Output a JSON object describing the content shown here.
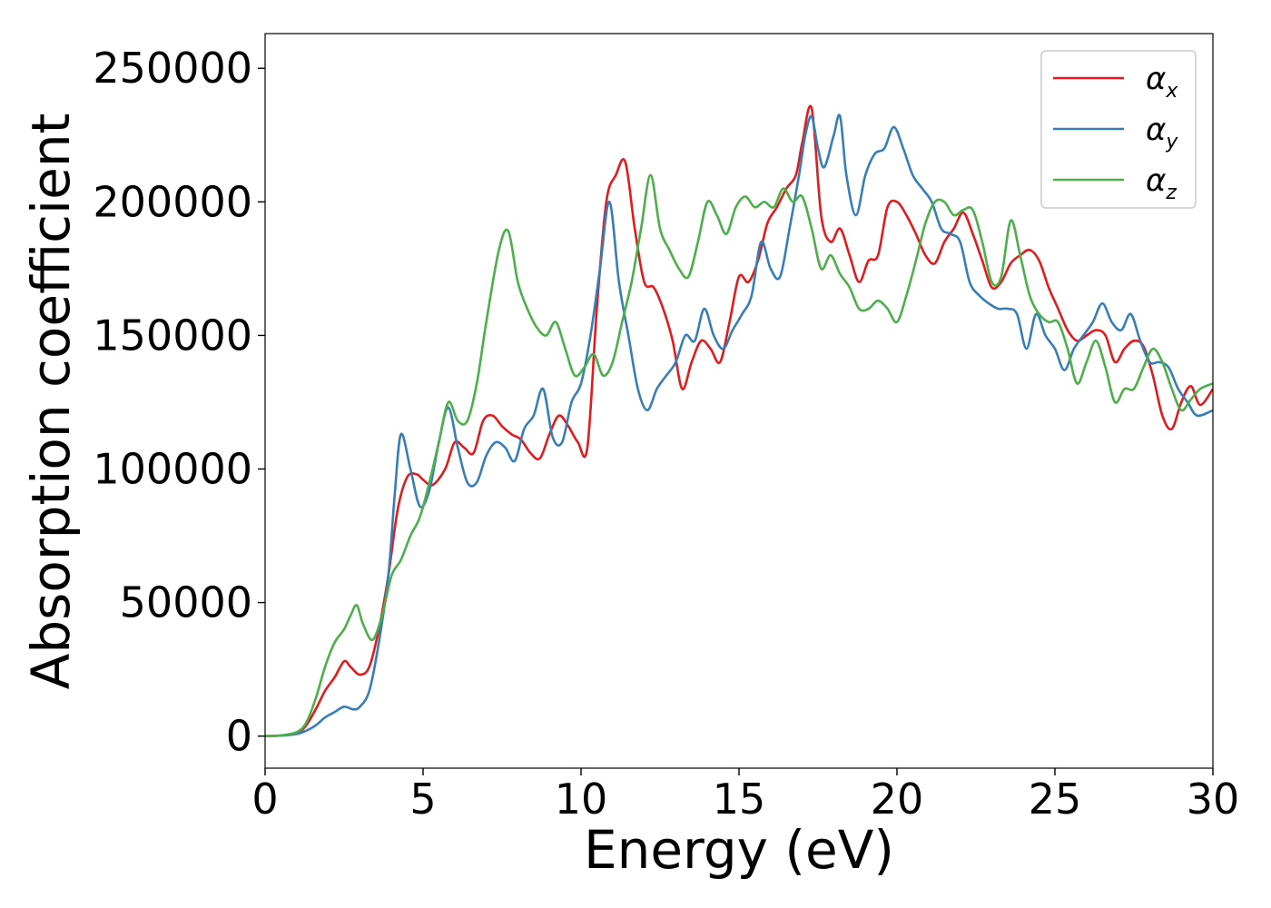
{
  "chart_data": {
    "type": "line",
    "title": "",
    "xlabel": "Energy (eV)",
    "ylabel": "Absorption coefficient",
    "xlim": [
      0,
      30
    ],
    "ylim": [
      -12000,
      263000
    ],
    "xticks": [
      0,
      5,
      10,
      15,
      20,
      25,
      30
    ],
    "yticks": [
      0,
      50000,
      100000,
      150000,
      200000,
      250000
    ],
    "xtick_labels": [
      "0",
      "5",
      "10",
      "15",
      "20",
      "25",
      "30"
    ],
    "ytick_labels": [
      "0",
      "50000",
      "100000",
      "150000",
      "200000",
      "250000"
    ],
    "grid": false,
    "legend_position": "top-right",
    "series": [
      {
        "name": "αx",
        "symbol": "α",
        "subscript": "x",
        "color": "#e41a1c",
        "x": [
          0,
          0.5,
          1,
          1.3,
          1.6,
          1.9,
          2.2,
          2.5,
          2.7,
          3.0,
          3.3,
          3.6,
          3.9,
          4.2,
          4.5,
          4.8,
          5.0,
          5.3,
          5.7,
          6.0,
          6.3,
          6.6,
          6.9,
          7.2,
          7.5,
          7.8,
          8.1,
          8.4,
          8.7,
          9.0,
          9.3,
          9.6,
          9.9,
          10.2,
          10.5,
          10.8,
          11.1,
          11.4,
          11.7,
          12.0,
          12.3,
          12.6,
          12.9,
          13.2,
          13.5,
          13.8,
          14.1,
          14.4,
          14.7,
          15.0,
          15.3,
          15.6,
          15.9,
          16.2,
          16.5,
          16.8,
          17.0,
          17.3,
          17.6,
          17.9,
          18.2,
          18.5,
          18.8,
          19.1,
          19.4,
          19.7,
          20.0,
          20.3,
          20.6,
          20.9,
          21.2,
          21.5,
          21.8,
          22.1,
          22.4,
          22.7,
          23.0,
          23.3,
          23.6,
          23.9,
          24.2,
          24.5,
          24.8,
          25.1,
          25.4,
          25.7,
          26.0,
          26.3,
          26.6,
          26.9,
          27.2,
          27.5,
          27.8,
          28.1,
          28.4,
          28.7,
          29.0,
          29.3,
          29.6,
          30.0
        ],
        "y": [
          0,
          200,
          1000,
          4000,
          10000,
          17000,
          22000,
          28000,
          26000,
          23000,
          26000,
          40000,
          60000,
          85000,
          97000,
          98000,
          96000,
          94000,
          100000,
          110000,
          108000,
          106000,
          118000,
          120000,
          116000,
          113000,
          111000,
          106000,
          104000,
          113000,
          120000,
          116000,
          110000,
          108000,
          160000,
          200000,
          210000,
          215000,
          190000,
          170000,
          168000,
          160000,
          148000,
          130000,
          140000,
          148000,
          145000,
          140000,
          155000,
          172000,
          170000,
          178000,
          192000,
          198000,
          205000,
          210000,
          222000,
          235000,
          195000,
          185000,
          190000,
          180000,
          170000,
          178000,
          180000,
          198000,
          200000,
          195000,
          188000,
          180000,
          177000,
          185000,
          190000,
          196000,
          188000,
          178000,
          168000,
          170000,
          177000,
          180000,
          182000,
          178000,
          168000,
          160000,
          152000,
          148000,
          150000,
          152000,
          150000,
          140000,
          145000,
          148000,
          146000,
          135000,
          120000,
          115000,
          125000,
          131000,
          124000,
          130000
        ]
      },
      {
        "name": "αy",
        "symbol": "α",
        "subscript": "y",
        "color": "#377eb8",
        "x": [
          0,
          0.5,
          1,
          1.3,
          1.6,
          1.9,
          2.2,
          2.5,
          2.8,
          3.0,
          3.3,
          3.6,
          3.9,
          4.1,
          4.3,
          4.6,
          4.9,
          5.2,
          5.5,
          5.8,
          6.1,
          6.4,
          6.7,
          7.0,
          7.3,
          7.6,
          7.9,
          8.2,
          8.5,
          8.8,
          9.1,
          9.4,
          9.7,
          10.0,
          10.3,
          10.6,
          10.9,
          11.2,
          11.5,
          11.8,
          12.1,
          12.4,
          12.7,
          13.0,
          13.3,
          13.6,
          13.9,
          14.2,
          14.5,
          14.8,
          15.1,
          15.4,
          15.7,
          16.0,
          16.3,
          16.6,
          16.9,
          17.1,
          17.3,
          17.5,
          17.7,
          18.0,
          18.2,
          18.4,
          18.7,
          19.0,
          19.3,
          19.6,
          19.9,
          20.2,
          20.5,
          20.8,
          21.1,
          21.4,
          21.7,
          22.0,
          22.3,
          22.6,
          22.9,
          23.2,
          23.5,
          23.8,
          24.1,
          24.4,
          24.7,
          25.0,
          25.3,
          25.6,
          25.9,
          26.2,
          26.5,
          26.8,
          27.1,
          27.4,
          27.7,
          28.0,
          28.3,
          28.6,
          28.9,
          29.2,
          29.5,
          30.0
        ],
        "y": [
          0,
          200,
          800,
          2000,
          4000,
          7000,
          9000,
          11000,
          10000,
          11000,
          17000,
          35000,
          60000,
          90000,
          113000,
          100000,
          86000,
          92000,
          110000,
          123000,
          108000,
          95000,
          95000,
          105000,
          110000,
          108000,
          103000,
          115000,
          120000,
          130000,
          112000,
          110000,
          125000,
          132000,
          150000,
          175000,
          200000,
          170000,
          150000,
          130000,
          122000,
          130000,
          135000,
          140000,
          150000,
          148000,
          160000,
          150000,
          145000,
          152000,
          158000,
          165000,
          185000,
          175000,
          172000,
          190000,
          210000,
          225000,
          232000,
          220000,
          213000,
          225000,
          232000,
          210000,
          195000,
          210000,
          218000,
          220000,
          228000,
          220000,
          210000,
          205000,
          200000,
          190000,
          188000,
          185000,
          170000,
          165000,
          162000,
          160000,
          160000,
          158000,
          145000,
          158000,
          150000,
          145000,
          137000,
          145000,
          150000,
          155000,
          162000,
          155000,
          152000,
          158000,
          148000,
          140000,
          140000,
          138000,
          130000,
          125000,
          120000,
          122000
        ]
      },
      {
        "name": "αz",
        "symbol": "α",
        "subscript": "z",
        "color": "#4daf4a",
        "x": [
          0,
          0.5,
          1,
          1.3,
          1.6,
          1.9,
          2.2,
          2.5,
          2.7,
          2.9,
          3.1,
          3.4,
          3.7,
          4.0,
          4.3,
          4.6,
          4.9,
          5.2,
          5.5,
          5.8,
          6.1,
          6.4,
          6.7,
          7.0,
          7.4,
          7.7,
          8.0,
          8.3,
          8.6,
          8.9,
          9.2,
          9.5,
          9.8,
          10.1,
          10.4,
          10.7,
          11.0,
          11.3,
          11.6,
          11.9,
          12.2,
          12.5,
          12.8,
          13.1,
          13.4,
          13.7,
          14.0,
          14.3,
          14.6,
          14.9,
          15.2,
          15.5,
          15.8,
          16.1,
          16.4,
          16.7,
          17.0,
          17.3,
          17.6,
          17.9,
          18.2,
          18.5,
          18.8,
          19.1,
          19.4,
          19.7,
          20.0,
          20.3,
          20.6,
          20.9,
          21.2,
          21.5,
          21.8,
          22.1,
          22.4,
          22.7,
          23.0,
          23.3,
          23.6,
          23.9,
          24.2,
          24.5,
          24.8,
          25.1,
          25.4,
          25.7,
          26.0,
          26.3,
          26.6,
          26.9,
          27.2,
          27.5,
          27.8,
          28.1,
          28.4,
          28.7,
          29.0,
          29.3,
          29.6,
          30.0
        ],
        "y": [
          0,
          300,
          1500,
          5000,
          14000,
          26000,
          35000,
          40000,
          45000,
          49000,
          42000,
          36000,
          45000,
          60000,
          66000,
          75000,
          82000,
          95000,
          110000,
          125000,
          118000,
          118000,
          132000,
          155000,
          182000,
          189000,
          170000,
          160000,
          153000,
          150000,
          155000,
          145000,
          135000,
          138000,
          143000,
          135000,
          140000,
          155000,
          170000,
          190000,
          210000,
          190000,
          182000,
          175000,
          172000,
          185000,
          200000,
          195000,
          188000,
          198000,
          202000,
          198000,
          200000,
          198000,
          205000,
          200000,
          202000,
          190000,
          175000,
          180000,
          173000,
          168000,
          160000,
          160000,
          163000,
          160000,
          155000,
          165000,
          178000,
          192000,
          200000,
          200000,
          195000,
          197000,
          197000,
          185000,
          170000,
          172000,
          193000,
          180000,
          165000,
          158000,
          155000,
          155000,
          145000,
          132000,
          140000,
          148000,
          138000,
          125000,
          130000,
          130000,
          138000,
          145000,
          140000,
          130000,
          122000,
          126000,
          130000,
          132000
        ]
      }
    ]
  }
}
